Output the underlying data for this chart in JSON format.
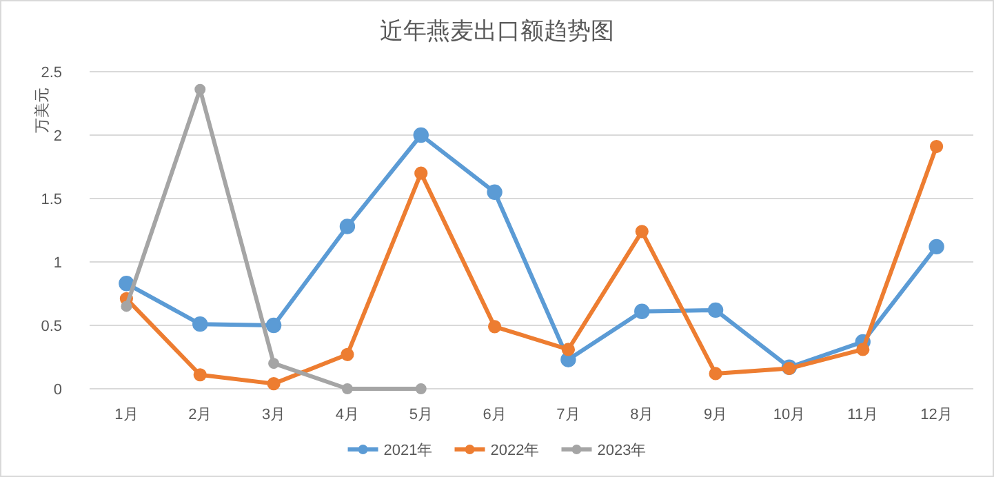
{
  "chart_data": {
    "type": "line",
    "title": "近年燕麦出口额趋势图",
    "ylabel": "万美元",
    "categories": [
      "1月",
      "2月",
      "3月",
      "4月",
      "5月",
      "6月",
      "7月",
      "8月",
      "9月",
      "10月",
      "11月",
      "12月"
    ],
    "series": [
      {
        "name": "2021年",
        "color": "#5b9bd5",
        "values": [
          0.83,
          0.51,
          0.5,
          1.28,
          2.0,
          1.55,
          0.23,
          0.61,
          0.62,
          0.17,
          0.37,
          1.12
        ]
      },
      {
        "name": "2022年",
        "color": "#ed7d31",
        "values": [
          0.71,
          0.11,
          0.04,
          0.27,
          1.7,
          0.49,
          0.31,
          1.24,
          0.12,
          0.16,
          0.31,
          1.91
        ]
      },
      {
        "name": "2023年",
        "color": "#a5a5a5",
        "values": [
          0.65,
          2.36,
          0.2,
          0,
          0,
          null,
          null,
          null,
          null,
          null,
          null,
          null
        ]
      }
    ],
    "ylim": [
      0,
      2.5
    ],
    "yticks": [
      0,
      0.5,
      1,
      1.5,
      2,
      2.5
    ],
    "grid": "y",
    "legend": "bottom",
    "marker": "circle",
    "line_style": "solid"
  }
}
